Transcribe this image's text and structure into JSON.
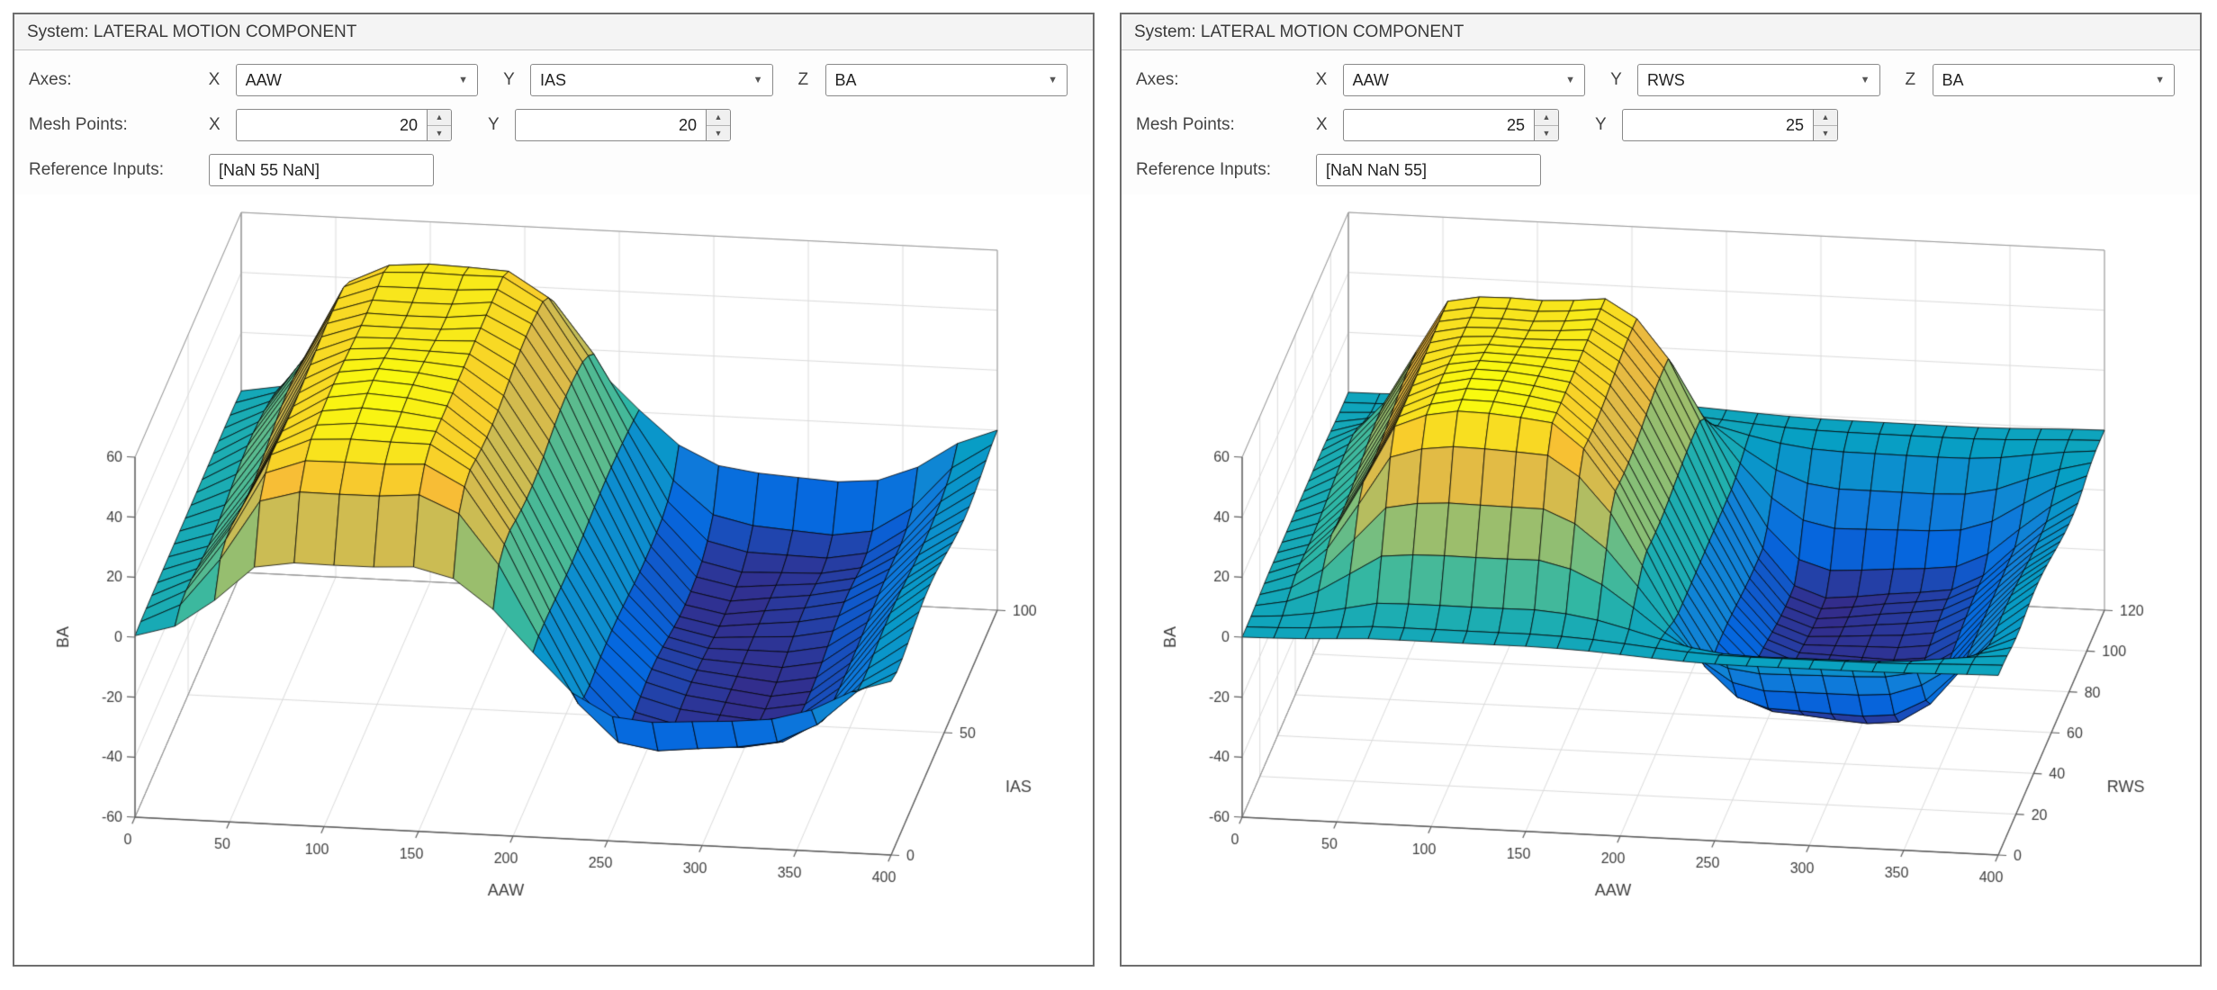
{
  "icons": {
    "caret_down": "▼",
    "spinner_up": "▲",
    "spinner_down": "▼"
  },
  "colors": {
    "panel_border": "#6e6e6e",
    "titlebar_bg": "#f4f4f4",
    "plot_bg": "#ffffff",
    "grid_line": "#dcdcdc",
    "box_edge": "#9a9a9a",
    "axis_edge": "#5f5f5f",
    "mesh_edge": "#111111",
    "parula": [
      [
        0,
        "#352a87"
      ],
      [
        0.13,
        "#0567df"
      ],
      [
        0.25,
        "#1180d8"
      ],
      [
        0.38,
        "#07a0c3"
      ],
      [
        0.5,
        "#2cb6a6"
      ],
      [
        0.63,
        "#7fbf7b"
      ],
      [
        0.75,
        "#c5bc57"
      ],
      [
        0.88,
        "#f7ba38"
      ],
      [
        1,
        "#f9fb0e"
      ]
    ]
  },
  "panels": [
    {
      "title": "System: LATERAL MOTION COMPONENT",
      "axes_row": {
        "label": "Axes:",
        "x": "X",
        "y": "Y",
        "z": "Z",
        "x_value": "AAW",
        "y_value": "IAS",
        "z_value": "BA"
      },
      "mesh_row": {
        "label": "Mesh Points:",
        "x": "X",
        "y": "Y",
        "x_value": "20",
        "y_value": "20"
      },
      "ref_row": {
        "label": "Reference Inputs:",
        "value": "[NaN 55 NaN]"
      }
    },
    {
      "title": "System: LATERAL MOTION COMPONENT",
      "axes_row": {
        "label": "Axes:",
        "x": "X",
        "y": "Y",
        "z": "Z",
        "x_value": "AAW",
        "y_value": "RWS",
        "z_value": "BA"
      },
      "mesh_row": {
        "label": "Mesh Points:",
        "x": "X",
        "y": "Y",
        "x_value": "25",
        "y_value": "25"
      },
      "ref_row": {
        "label": "Reference Inputs:",
        "value": "[NaN NaN 55]"
      }
    }
  ],
  "chart_data": [
    {
      "type": "surface",
      "title": "",
      "xlabel": "AAW",
      "ylabel": "IAS",
      "zlabel": "BA",
      "x_range": [
        0,
        400
      ],
      "y_range": [
        0,
        100
      ],
      "z_range": [
        -60,
        60
      ],
      "x_ticks": [
        0,
        50,
        100,
        150,
        200,
        250,
        300,
        350,
        400
      ],
      "y_ticks": [
        0,
        50,
        100
      ],
      "z_ticks": [
        -60,
        -40,
        -20,
        0,
        20,
        40,
        60
      ],
      "mesh_points_x": 20,
      "mesh_points_y": 20,
      "reference_inputs": "[NaN 55 NaN]",
      "colormap": "parula",
      "surface_model": {
        "z_profile_x": [
          [
            0,
            1
          ],
          [
            25,
            8
          ],
          [
            45,
            28
          ],
          [
            65,
            52
          ],
          [
            90,
            57
          ],
          [
            150,
            56
          ],
          [
            175,
            45
          ],
          [
            195,
            22
          ],
          [
            210,
            3
          ],
          [
            225,
            -16
          ],
          [
            245,
            -33
          ],
          [
            265,
            -38
          ],
          [
            330,
            -38
          ],
          [
            355,
            -29
          ],
          [
            375,
            -13
          ],
          [
            400,
            -2
          ]
        ],
        "y_edge_taper": [
          [
            0,
            0.5
          ],
          [
            0.06,
            0.9
          ],
          [
            0.14,
            1
          ],
          [
            0.86,
            1
          ],
          [
            0.94,
            0.9
          ],
          [
            1,
            0.5
          ]
        ],
        "texture_amp": 2.2
      }
    },
    {
      "type": "surface",
      "title": "",
      "xlabel": "AAW",
      "ylabel": "RWS",
      "zlabel": "BA",
      "x_range": [
        0,
        400
      ],
      "y_range": [
        0,
        120
      ],
      "z_range": [
        -60,
        60
      ],
      "x_ticks": [
        0,
        50,
        100,
        150,
        200,
        250,
        300,
        350,
        400
      ],
      "y_ticks": [
        0,
        20,
        40,
        60,
        80,
        100,
        120
      ],
      "z_ticks": [
        -60,
        -40,
        -20,
        0,
        20,
        40,
        60
      ],
      "mesh_points_x": 25,
      "mesh_points_y": 25,
      "reference_inputs": "[NaN NaN 55]",
      "colormap": "parula",
      "surface_model": {
        "z_profile_x": [
          [
            0,
            1
          ],
          [
            25,
            8
          ],
          [
            45,
            28
          ],
          [
            65,
            52
          ],
          [
            90,
            57
          ],
          [
            150,
            56
          ],
          [
            175,
            45
          ],
          [
            195,
            22
          ],
          [
            210,
            3
          ],
          [
            225,
            -16
          ],
          [
            245,
            -33
          ],
          [
            265,
            -38
          ],
          [
            330,
            -38
          ],
          [
            355,
            -29
          ],
          [
            375,
            -13
          ],
          [
            400,
            -2
          ]
        ],
        "y_edge_taper": [
          [
            0,
            0.03
          ],
          [
            0.07,
            0.05
          ],
          [
            0.15,
            0.5
          ],
          [
            0.23,
            1
          ],
          [
            0.77,
            1
          ],
          [
            0.85,
            0.5
          ],
          [
            0.93,
            0.05
          ],
          [
            1,
            0.03
          ]
        ],
        "texture_amp": 2.2
      }
    }
  ]
}
